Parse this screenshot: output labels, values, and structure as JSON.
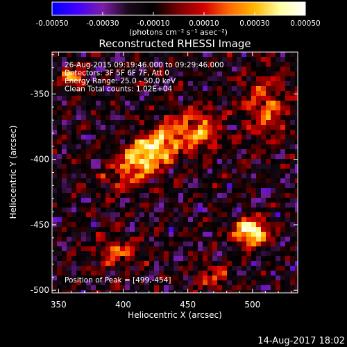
{
  "chart_data": {
    "type": "heatmap",
    "title": "Reconstructed RHESSI Image",
    "colorbar": {
      "ticks": [
        "-0.00050",
        "-0.00030",
        "-0.00010",
        "0.00010",
        "0.00030",
        "0.00050"
      ],
      "unit_label": "(photons cm⁻² s⁻¹ asec⁻²)",
      "range": [
        -0.0005,
        0.0005
      ],
      "colormap": [
        "#0000ff",
        "#4400ff",
        "#7a1ea8",
        "#1a0a1a",
        "#000000",
        "#7a0000",
        "#d40000",
        "#ff6a00",
        "#ffb800",
        "#ffffa0",
        "#ffffff"
      ]
    },
    "xlabel": "Heliocentric X (arcsec)",
    "ylabel": "Heliocentric Y (arcsec)",
    "xlim": [
      345,
      535
    ],
    "ylim": [
      -502,
      -318
    ],
    "xticks": [
      350,
      400,
      450,
      500
    ],
    "yticks": [
      -500,
      -450,
      -400,
      -350
    ],
    "annotations": [
      "26-Aug-2015 09:19:46.000 to 09:29:46.000",
      "Detectors: 3F 5F 6F 7F, Att 0",
      "Energy Range: 25.0 - 50.0 keV",
      "Clean    Total counts: 1.02E+04"
    ],
    "peak_label": "Position of Peak = [499,-454]",
    "peak": [
      499,
      -454
    ],
    "sources": [
      {
        "x": 499,
        "y": -455,
        "amp": 1.0,
        "sx": 9,
        "sy": 7
      },
      {
        "x": 420,
        "y": -395,
        "amp": 0.85,
        "sx": 22,
        "sy": 10,
        "angle": -38
      },
      {
        "x": 362,
        "y": -338,
        "amp": 0.55,
        "sx": 7,
        "sy": 6
      },
      {
        "x": 460,
        "y": -380,
        "amp": 0.5,
        "sx": 10,
        "sy": 12
      },
      {
        "x": 510,
        "y": -360,
        "amp": 0.45,
        "sx": 12,
        "sy": 18
      },
      {
        "x": 395,
        "y": -470,
        "amp": 0.4,
        "sx": 12,
        "sy": 8
      },
      {
        "x": 470,
        "y": -490,
        "amp": 0.35,
        "sx": 9,
        "sy": 7
      }
    ]
  },
  "footer": {
    "timestamp": "14-Aug-2017 18:02"
  }
}
